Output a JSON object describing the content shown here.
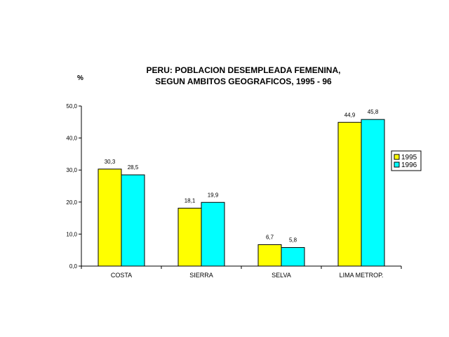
{
  "chart_data": {
    "type": "bar",
    "title_line1": "PERU: POBLACION DESEMPLEADA FEMENINA,",
    "title_line2": "SEGUN AMBITOS GEOGRAFICOS, 1995 - 96",
    "ylabel": "%",
    "ylim": [
      0,
      50
    ],
    "yticks": [
      "0,0",
      "10,0",
      "20,0",
      "30,0",
      "40,0",
      "50,0"
    ],
    "categories": [
      "COSTA",
      "SIERRA",
      "SELVA",
      "LIMA METROP."
    ],
    "series": [
      {
        "name": "1995",
        "color": "#ffff00",
        "values": [
          30.3,
          18.1,
          6.7,
          44.9
        ],
        "labels": [
          "30,3",
          "18,1",
          "6,7",
          "44,9"
        ]
      },
      {
        "name": "1996",
        "color": "#00ffff",
        "values": [
          28.5,
          19.9,
          5.8,
          45.8
        ],
        "labels": [
          "28,5",
          "19,9",
          "5,8",
          "45,8"
        ]
      }
    ],
    "legend_position": "right",
    "grid": false
  }
}
